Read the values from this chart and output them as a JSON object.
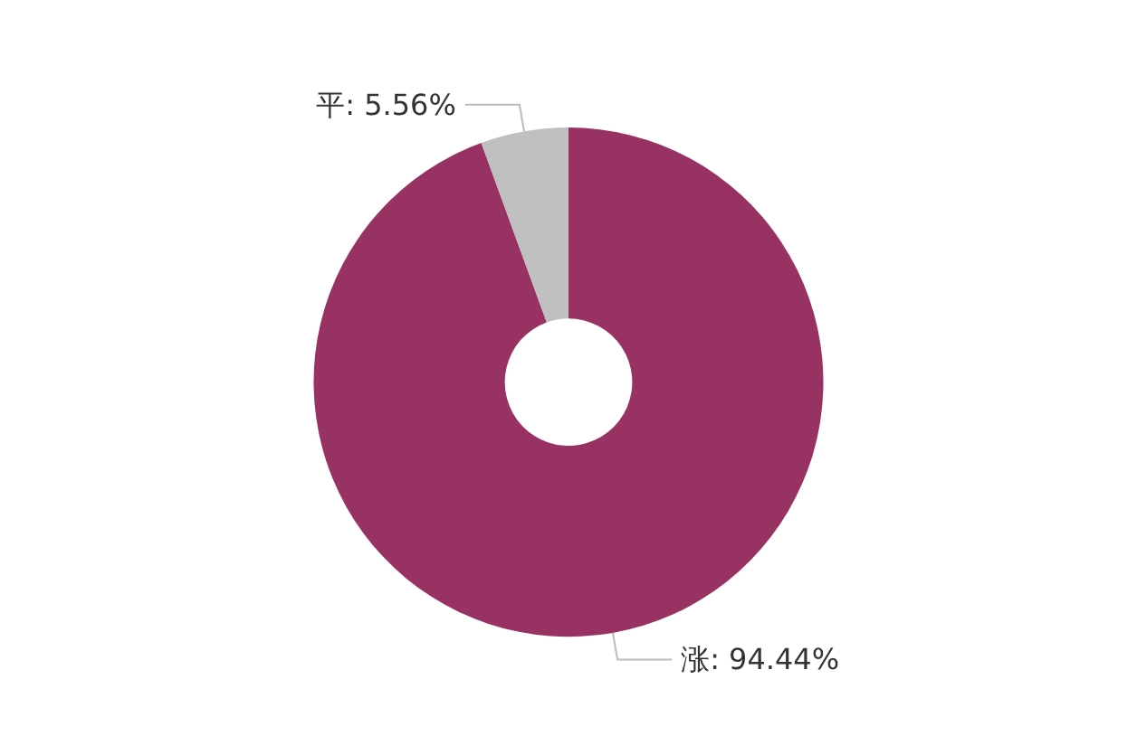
{
  "chart_data": {
    "type": "donut",
    "categories": [
      "涨",
      "平"
    ],
    "values": [
      94.44,
      5.56
    ],
    "value_labels": [
      ": 94.44%",
      ": 5.56%"
    ],
    "colors": [
      "#983263",
      "#c0c0c0"
    ],
    "legend": false
  }
}
